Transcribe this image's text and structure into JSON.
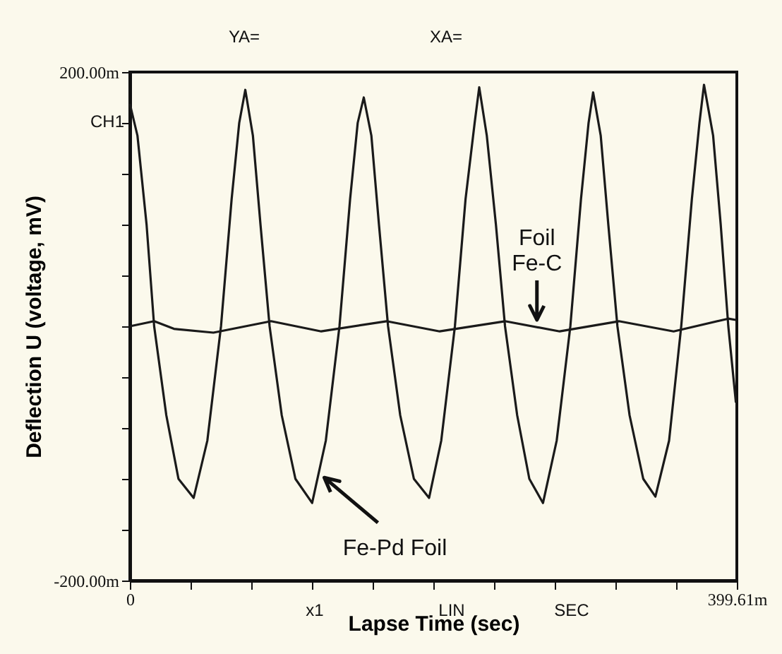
{
  "chart_data": {
    "type": "line",
    "xlabel": "Lapse Time  (sec)",
    "ylabel": "Deflection  U (voltage, mV)",
    "xlim": [
      0,
      399.61
    ],
    "ylim": [
      -200,
      200
    ],
    "xticks": [
      {
        "value": 0,
        "label": "0"
      },
      {
        "value": 40,
        "label": null
      },
      {
        "value": 80,
        "label": null
      },
      {
        "value": 120,
        "label": null
      },
      {
        "value": 160,
        "label": null
      },
      {
        "value": 200,
        "label": null
      },
      {
        "value": 240,
        "label": null
      },
      {
        "value": 280,
        "label": null
      },
      {
        "value": 320,
        "label": null
      },
      {
        "value": 360,
        "label": null
      },
      {
        "value": 399.61,
        "label": "399.61m"
      }
    ],
    "yticks": [
      {
        "value": -200,
        "label": "-200.00m"
      },
      {
        "value": -160,
        "label": null
      },
      {
        "value": -120,
        "label": null
      },
      {
        "value": -80,
        "label": null
      },
      {
        "value": -40,
        "label": null
      },
      {
        "value": 0,
        "label": null
      },
      {
        "value": 40,
        "label": null
      },
      {
        "value": 80,
        "label": null
      },
      {
        "value": 120,
        "label": null
      },
      {
        "value": 160,
        "label": null
      },
      {
        "value": 200,
        "label": "200.00m"
      }
    ],
    "series": [
      {
        "color": "#1a1a1a",
        "x": [
          0,
          5,
          11,
          16,
          24,
          32,
          42,
          51,
          60,
          67,
          72,
          76,
          81,
          86,
          92,
          100,
          109,
          120,
          129,
          138,
          145,
          150,
          154,
          159,
          164,
          170,
          178,
          187,
          197,
          205,
          214,
          221,
          227,
          230,
          235,
          241,
          247,
          255,
          263,
          272,
          281,
          290,
          297,
          302,
          305,
          310,
          315,
          321,
          329,
          338,
          346,
          355,
          363,
          370,
          375,
          378,
          384,
          389,
          394,
          399
        ],
        "values": [
          175,
          150,
          80,
          0,
          -70,
          -120,
          -135,
          -90,
          0,
          100,
          160,
          186,
          150,
          80,
          0,
          -70,
          -120,
          -139,
          -90,
          0,
          100,
          160,
          180,
          150,
          80,
          0,
          -70,
          -120,
          -135,
          -90,
          0,
          100,
          160,
          188,
          150,
          80,
          0,
          -70,
          -120,
          -139,
          -90,
          0,
          100,
          160,
          184,
          150,
          80,
          0,
          -70,
          -120,
          -134,
          -90,
          0,
          100,
          160,
          190,
          150,
          80,
          0,
          -60
        ]
      },
      {
        "color": "#1a1a1a",
        "x": [
          0,
          16,
          29,
          55,
          93,
          126,
          169,
          204,
          247,
          283,
          322,
          358,
          394,
          399
        ],
        "values": [
          0,
          4,
          -2,
          -5,
          4,
          -4,
          4,
          -4,
          4,
          -4,
          4,
          -4,
          6,
          5
        ]
      }
    ],
    "annotations": [
      "YA=",
      "XA=",
      "CH1",
      "x1",
      "LIN",
      "SEC",
      {
        "text": "Foil\nFe-C",
        "x": 268,
        "y": 5
      },
      {
        "text": "Fe-Pd Foil",
        "x": 128,
        "y": -119
      }
    ]
  }
}
